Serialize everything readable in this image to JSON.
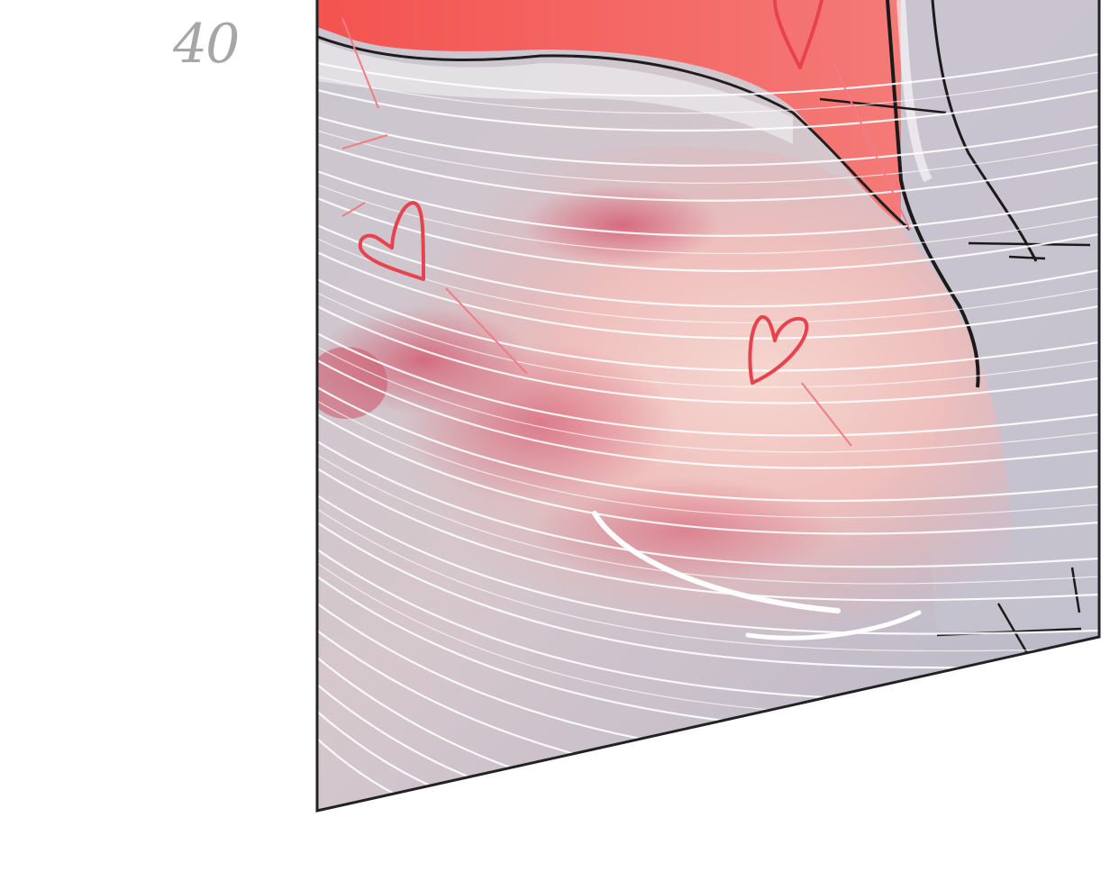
{
  "page": {
    "number": "40"
  },
  "panel": {
    "art": "comic-panel-art",
    "colors": {
      "panel_border": "#222222",
      "speed_lines": "#ffffff",
      "blush": "#d9667a",
      "skin": "#f2b8b4",
      "cloth_top": "#f25a5a",
      "shadow_gray": "#a9a9bd",
      "heart": "#e8424e"
    }
  }
}
